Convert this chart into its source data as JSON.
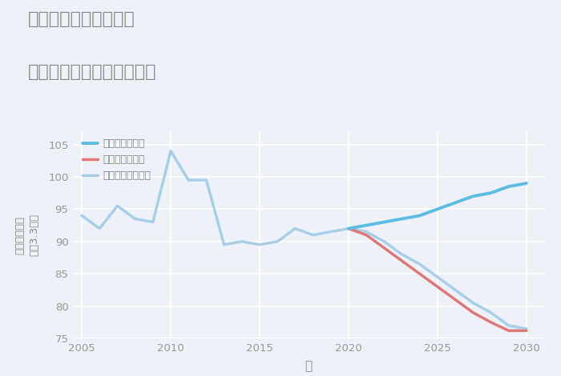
{
  "title_line1": "千葉県野田市三ツ堀の",
  "title_line2": "中古マンションの価格推移",
  "xlabel": "年",
  "ylabel_top": "単価（万円）",
  "ylabel_bottom": "坪（3.3㎡）",
  "ylim": [
    75,
    107
  ],
  "yticks": [
    75,
    80,
    85,
    90,
    95,
    100,
    105
  ],
  "xlim": [
    2004.5,
    2031
  ],
  "xticks": [
    2005,
    2010,
    2015,
    2020,
    2025,
    2030
  ],
  "bg_color": "#eef2f8",
  "plot_bg_color": "#eef2f8",
  "grid_color": "#ffffff",
  "good_color": "#5bbde4",
  "bad_color": "#e07878",
  "normal_color": "#a8cfe8",
  "good_label": "グッドシナリオ",
  "bad_label": "バッドシナリオ",
  "normal_label": "ノーマルシナリオ",
  "title_color": "#888888",
  "tick_color": "#999999",
  "label_color": "#888888",
  "historical_years": [
    2005,
    2006,
    2007,
    2008,
    2009,
    2010,
    2011,
    2012,
    2013,
    2014,
    2015,
    2016,
    2017,
    2018,
    2019,
    2020
  ],
  "historical_values": [
    94,
    92,
    95.5,
    93.5,
    93,
    104,
    99.5,
    99.5,
    89.5,
    90,
    89.5,
    90,
    92,
    91,
    91.5,
    92
  ],
  "good_future_years": [
    2020,
    2021,
    2022,
    2023,
    2024,
    2025,
    2026,
    2027,
    2028,
    2029,
    2030
  ],
  "good_future_values": [
    92,
    92.5,
    93,
    93.5,
    94,
    95,
    96,
    97,
    97.5,
    98.5,
    99
  ],
  "bad_future_years": [
    2020,
    2021,
    2022,
    2023,
    2024,
    2025,
    2026,
    2027,
    2028,
    2029,
    2030
  ],
  "bad_future_values": [
    92,
    91,
    89,
    87,
    85,
    83,
    81,
    79,
    77.5,
    76.2,
    76.2
  ],
  "normal_future_years": [
    2020,
    2021,
    2022,
    2023,
    2024,
    2025,
    2026,
    2027,
    2028,
    2029,
    2030
  ],
  "normal_future_values": [
    92,
    91.5,
    90,
    88,
    86.5,
    84.5,
    82.5,
    80.5,
    79,
    77,
    76.5
  ]
}
